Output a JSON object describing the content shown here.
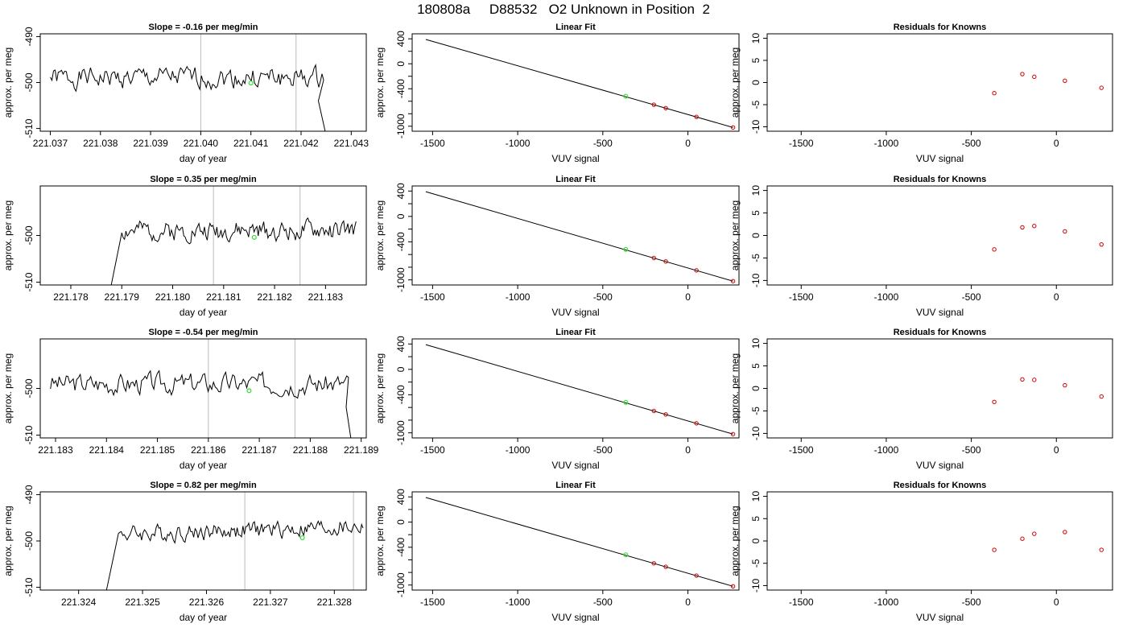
{
  "figure_title": "180808a     D88532   O2 Unknown in Position  2",
  "colors": {
    "trace": "#000000",
    "known_points": "#cc0000",
    "unknown_point": "#33dd33",
    "vertical_markers": "#bbbbbb"
  },
  "chart_data": [
    {
      "type": "line",
      "title": "Slope =  -0.16  per meg/min",
      "xlabel": "day of year",
      "ylabel": "approx. per meg",
      "xlim": [
        221.0368,
        221.0433
      ],
      "ylim": [
        -510.6,
        -489.4
      ],
      "xticks": [
        "221.037",
        "221.038",
        "221.039",
        "221.040",
        "221.041",
        "221.042",
        "221.043"
      ],
      "xtick_values": [
        221.037,
        221.038,
        221.039,
        221.04,
        221.041,
        221.042,
        221.043
      ],
      "yticks": [
        "-490",
        "-500",
        "-510"
      ],
      "ytick_values": [
        -490,
        -500,
        -510
      ],
      "series": [
        {
          "x_start": 221.037,
          "x_end": 221.04245,
          "baseline": -499.0,
          "amplitude": 2.2,
          "seed": 1,
          "tail": {
            "x_from": 221.0421,
            "y_to": -513
          }
        }
      ],
      "markers_x": [
        221.04,
        221.0419
      ],
      "unknown_point": {
        "x": 221.041,
        "y": -500.1
      }
    },
    {
      "type": "scatter",
      "title": "Linear Fit",
      "xlabel": "VUV signal",
      "ylabel": "approx. per meg",
      "xlim": [
        -1620,
        300
      ],
      "ylim": [
        -1080,
        480
      ],
      "xticks": [
        "-1500",
        "-1000",
        "-500",
        "0"
      ],
      "xtick_values": [
        -1500,
        -1000,
        -500,
        0
      ],
      "yticks": [
        "400",
        "0",
        "-400",
        "-1000"
      ],
      "ytick_values": [
        400,
        0,
        -400,
        -1000
      ],
      "ytick_minor": [
        200,
        -200,
        -600,
        -800
      ],
      "fit_line": {
        "x": [
          -1540,
          265
        ],
        "y": [
          390,
          -1020
        ]
      },
      "known_points": [
        {
          "x": -200,
          "y": -655
        },
        {
          "x": -130,
          "y": -710
        },
        {
          "x": 50,
          "y": -850
        },
        {
          "x": 265,
          "y": -1020
        }
      ],
      "unknown_point": {
        "x": -365,
        "y": -520
      }
    },
    {
      "type": "scatter",
      "title": "Residuals for Knowns",
      "xlabel": "VUV signal",
      "ylabel": "approx. per meg",
      "xlim": [
        -1700,
        330
      ],
      "ylim": [
        -11,
        11
      ],
      "xticks": [
        "-1500",
        "-1000",
        "-500",
        "0"
      ],
      "xtick_values": [
        -1500,
        -1000,
        -500,
        0
      ],
      "yticks": [
        "10",
        "5",
        "0",
        "-5",
        "-10"
      ],
      "ytick_values": [
        10,
        5,
        0,
        -5,
        -10
      ],
      "known_points": [
        {
          "x": -365,
          "y": -2.4
        },
        {
          "x": -200,
          "y": 1.9
        },
        {
          "x": -130,
          "y": 1.3
        },
        {
          "x": 50,
          "y": 0.4
        },
        {
          "x": 265,
          "y": -1.2
        }
      ]
    },
    {
      "type": "line",
      "title": "Slope =  0.35  per meg/min",
      "xlabel": "day of year",
      "ylabel": "approx. per meg",
      "xlim": [
        221.1774,
        221.1838
      ],
      "ylim": [
        -510.6,
        -489.4
      ],
      "xticks": [
        "221.178",
        "221.179",
        "221.180",
        "221.181",
        "221.182",
        "221.183"
      ],
      "xtick_values": [
        221.178,
        221.179,
        221.18,
        221.181,
        221.182,
        221.183
      ],
      "yticks": [
        "-500",
        "-510"
      ],
      "ytick_values": [
        -500,
        -510
      ],
      "series": [
        {
          "x_start": 221.179,
          "x_end": 221.1836,
          "baseline": -499.0,
          "amplitude": 2.0,
          "seed": 2,
          "head": {
            "x_from": 221.17875,
            "y_from": -513
          }
        }
      ],
      "markers_x": [
        221.1808,
        221.1825
      ],
      "unknown_point": {
        "x": 221.1816,
        "y": -500.4
      }
    },
    {
      "type": "scatter",
      "title": "Linear Fit",
      "xlabel": "VUV signal",
      "ylabel": "approx. per meg",
      "xlim": [
        -1620,
        300
      ],
      "ylim": [
        -1080,
        480
      ],
      "xticks": [
        "-1500",
        "-1000",
        "-500",
        "0"
      ],
      "xtick_values": [
        -1500,
        -1000,
        -500,
        0
      ],
      "yticks": [
        "400",
        "0",
        "-400",
        "-1000"
      ],
      "ytick_values": [
        400,
        0,
        -400,
        -1000
      ],
      "ytick_minor": [
        200,
        -200,
        -600,
        -800
      ],
      "fit_line": {
        "x": [
          -1540,
          265
        ],
        "y": [
          390,
          -1020
        ]
      },
      "known_points": [
        {
          "x": -200,
          "y": -655
        },
        {
          "x": -130,
          "y": -710
        },
        {
          "x": 50,
          "y": -850
        },
        {
          "x": 265,
          "y": -1020
        }
      ],
      "unknown_point": {
        "x": -365,
        "y": -520
      }
    },
    {
      "type": "scatter",
      "title": "Residuals for Knowns",
      "xlabel": "VUV signal",
      "ylabel": "approx. per meg",
      "xlim": [
        -1700,
        330
      ],
      "ylim": [
        -11,
        11
      ],
      "xticks": [
        "-1500",
        "-1000",
        "-500",
        "0"
      ],
      "xtick_values": [
        -1500,
        -1000,
        -500,
        0
      ],
      "yticks": [
        "10",
        "5",
        "0",
        "-5",
        "-10"
      ],
      "ytick_values": [
        10,
        5,
        0,
        -5,
        -10
      ],
      "known_points": [
        {
          "x": -365,
          "y": -3.1
        },
        {
          "x": -200,
          "y": 1.8
        },
        {
          "x": -130,
          "y": 2.1
        },
        {
          "x": 50,
          "y": 0.9
        },
        {
          "x": 265,
          "y": -2.0
        }
      ]
    },
    {
      "type": "line",
      "title": "Slope =  -0.54  per meg/min",
      "xlabel": "day of year",
      "ylabel": "approx. per meg",
      "xlim": [
        221.1827,
        221.1891
      ],
      "ylim": [
        -510.6,
        -489.4
      ],
      "xticks": [
        "221.183",
        "221.184",
        "221.185",
        "221.186",
        "221.187",
        "221.188",
        "221.189"
      ],
      "xtick_values": [
        221.183,
        221.184,
        221.185,
        221.186,
        221.187,
        221.188,
        221.189
      ],
      "yticks": [
        "-500",
        "-510"
      ],
      "ytick_values": [
        -500,
        -510
      ],
      "series": [
        {
          "x_start": 221.1829,
          "x_end": 221.18875,
          "baseline": -499.0,
          "amplitude": 2.2,
          "seed": 3,
          "tail": {
            "x_from": 221.1886,
            "y_to": -513
          }
        }
      ],
      "markers_x": [
        221.186,
        221.1877
      ],
      "unknown_point": {
        "x": 221.1868,
        "y": -500.5
      }
    },
    {
      "type": "scatter",
      "title": "Linear Fit",
      "xlabel": "VUV signal",
      "ylabel": "approx. per meg",
      "xlim": [
        -1620,
        300
      ],
      "ylim": [
        -1080,
        480
      ],
      "xticks": [
        "-1500",
        "-1000",
        "-500",
        "0"
      ],
      "xtick_values": [
        -1500,
        -1000,
        -500,
        0
      ],
      "yticks": [
        "400",
        "0",
        "-400",
        "-1000"
      ],
      "ytick_values": [
        400,
        0,
        -400,
        -1000
      ],
      "ytick_minor": [
        200,
        -200,
        -600,
        -800
      ],
      "fit_line": {
        "x": [
          -1540,
          265
        ],
        "y": [
          390,
          -1020
        ]
      },
      "known_points": [
        {
          "x": -200,
          "y": -655
        },
        {
          "x": -130,
          "y": -710
        },
        {
          "x": 50,
          "y": -850
        },
        {
          "x": 265,
          "y": -1020
        }
      ],
      "unknown_point": {
        "x": -365,
        "y": -520
      }
    },
    {
      "type": "scatter",
      "title": "Residuals for Knowns",
      "xlabel": "VUV signal",
      "ylabel": "approx. per meg",
      "xlim": [
        -1700,
        330
      ],
      "ylim": [
        -11,
        11
      ],
      "xticks": [
        "-1500",
        "-1000",
        "-500",
        "0"
      ],
      "xtick_values": [
        -1500,
        -1000,
        -500,
        0
      ],
      "yticks": [
        "10",
        "5",
        "0",
        "-5",
        "-10"
      ],
      "ytick_values": [
        10,
        5,
        0,
        -5,
        -10
      ],
      "known_points": [
        {
          "x": -365,
          "y": -3.0
        },
        {
          "x": -200,
          "y": 2.0
        },
        {
          "x": -130,
          "y": 1.9
        },
        {
          "x": 50,
          "y": 0.7
        },
        {
          "x": 265,
          "y": -1.8
        }
      ]
    },
    {
      "type": "line",
      "title": "Slope =  0.82  per meg/min",
      "xlabel": "day of year",
      "ylabel": "approx. per meg",
      "xlim": [
        221.3234,
        221.3285
      ],
      "ylim": [
        -510.6,
        -489.4
      ],
      "xticks": [
        "221.324",
        "221.325",
        "221.326",
        "221.327",
        "221.328"
      ],
      "xtick_values": [
        221.324,
        221.325,
        221.326,
        221.327,
        221.328
      ],
      "yticks": [
        "-490",
        "-500",
        "-510"
      ],
      "ytick_values": [
        -490,
        -500,
        -510
      ],
      "series": [
        {
          "x_start": 221.3246,
          "x_end": 221.32845,
          "baseline": -498.5,
          "amplitude": 1.8,
          "seed": 4,
          "trend": 1.5,
          "head": {
            "x_from": 221.3244,
            "y_from": -513
          }
        }
      ],
      "markers_x": [
        221.3266,
        221.3283
      ],
      "unknown_point": {
        "x": 221.3275,
        "y": -499.3
      }
    },
    {
      "type": "scatter",
      "title": "Linear Fit",
      "xlabel": "VUV signal",
      "ylabel": "approx. per meg",
      "xlim": [
        -1620,
        300
      ],
      "ylim": [
        -1080,
        480
      ],
      "xticks": [
        "-1500",
        "-1000",
        "-500",
        "0"
      ],
      "xtick_values": [
        -1500,
        -1000,
        -500,
        0
      ],
      "yticks": [
        "400",
        "0",
        "-400",
        "-1000"
      ],
      "ytick_values": [
        400,
        0,
        -400,
        -1000
      ],
      "ytick_minor": [
        200,
        -200,
        -600,
        -800
      ],
      "fit_line": {
        "x": [
          -1540,
          265
        ],
        "y": [
          390,
          -1020
        ]
      },
      "known_points": [
        {
          "x": -200,
          "y": -655
        },
        {
          "x": -130,
          "y": -710
        },
        {
          "x": 50,
          "y": -850
        },
        {
          "x": 265,
          "y": -1020
        }
      ],
      "unknown_point": {
        "x": -365,
        "y": -520
      }
    },
    {
      "type": "scatter",
      "title": "Residuals for Knowns",
      "xlabel": "VUV signal",
      "ylabel": "approx. per meg",
      "xlim": [
        -1700,
        330
      ],
      "ylim": [
        -11,
        11
      ],
      "xticks": [
        "-1500",
        "-1000",
        "-500",
        "0"
      ],
      "xtick_values": [
        -1500,
        -1000,
        -500,
        0
      ],
      "yticks": [
        "10",
        "5",
        "0",
        "-5",
        "-10"
      ],
      "ytick_values": [
        10,
        5,
        0,
        -5,
        -10
      ],
      "known_points": [
        {
          "x": -365,
          "y": -2.0
        },
        {
          "x": -200,
          "y": 0.5
        },
        {
          "x": -130,
          "y": 1.6
        },
        {
          "x": 50,
          "y": 2.0
        },
        {
          "x": 265,
          "y": -2.0
        }
      ]
    }
  ]
}
